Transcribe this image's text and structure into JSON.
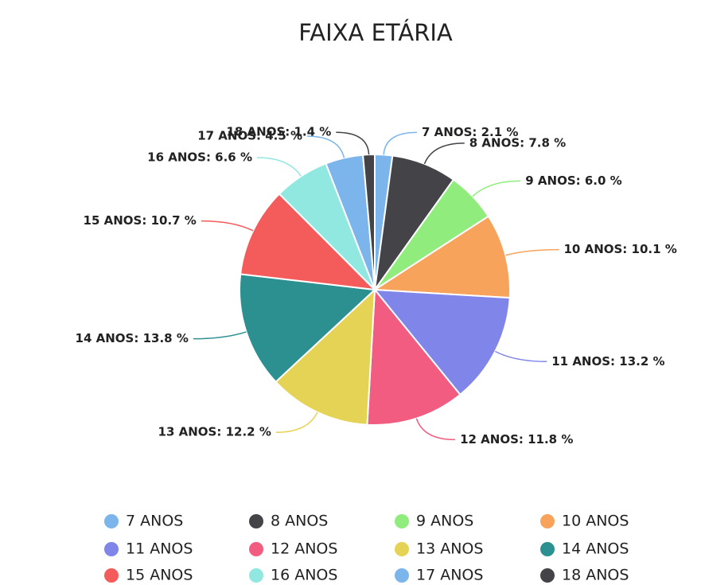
{
  "chart_data": {
    "type": "pie",
    "title": "FAIXA ETÁRIA",
    "categories": [
      "7 ANOS",
      "8 ANOS",
      "9 ANOS",
      "10 ANOS",
      "11 ANOS",
      "12 ANOS",
      "13 ANOS",
      "14 ANOS",
      "15 ANOS",
      "16 ANOS",
      "17 ANOS",
      "18 ANOS"
    ],
    "values": [
      2.1,
      7.8,
      6.0,
      10.1,
      13.2,
      11.8,
      12.2,
      13.8,
      10.7,
      6.6,
      4.5,
      1.4
    ],
    "value_labels": [
      "7 ANOS: 2.1 %",
      "8 ANOS: 7.8 %",
      "9 ANOS: 6.0 %",
      "10 ANOS: 10.1 %",
      "11 ANOS: 13.2 %",
      "12 ANOS: 11.8 %",
      "13 ANOS: 12.2 %",
      "14 ANOS: 13.8 %",
      "15 ANOS: 10.7 %",
      "16 ANOS: 6.6 %",
      "17 ANOS: 4.5 %",
      "18 ANOS: 1.4 %"
    ],
    "colors": [
      "#7cb5ec",
      "#434348",
      "#90ed7d",
      "#f7a35c",
      "#8085e9",
      "#f15c80",
      "#e4d354",
      "#2b908f",
      "#f45b5b",
      "#91e8e1",
      "#7cb5ec",
      "#434348"
    ],
    "legend": true
  }
}
